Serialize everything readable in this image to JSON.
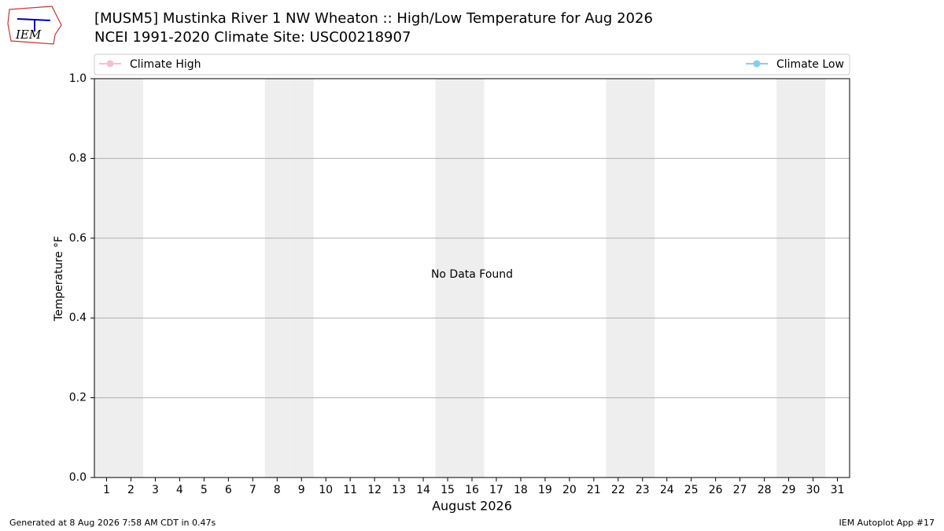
{
  "logo": "IEM",
  "chart_data": {
    "type": "line",
    "title": "[MUSM5] Mustinka River 1 NW Wheaton :: High/Low Temperature for Aug 2026",
    "subtitle": "NCEI 1991-2020 Climate Site: USC00218907",
    "x_label": "August 2026",
    "y_label": "Temperature °F",
    "annotation": "No Data Found",
    "x": [
      1,
      2,
      3,
      4,
      5,
      6,
      7,
      8,
      9,
      10,
      11,
      12,
      13,
      14,
      15,
      16,
      17,
      18,
      19,
      20,
      21,
      22,
      23,
      24,
      25,
      26,
      27,
      28,
      29,
      30,
      31
    ],
    "xlim": [
      0.5,
      31.5
    ],
    "xticks": [
      1,
      2,
      3,
      4,
      5,
      6,
      7,
      8,
      9,
      10,
      11,
      12,
      13,
      14,
      15,
      16,
      17,
      18,
      19,
      20,
      21,
      22,
      23,
      24,
      25,
      26,
      27,
      28,
      29,
      30,
      31
    ],
    "shaded_x": [
      1,
      2,
      8,
      9,
      15,
      16,
      22,
      23,
      29,
      30
    ],
    "ylim": [
      0,
      1
    ],
    "yticks": [
      {
        "value": 0,
        "label": "0.0"
      },
      {
        "value": 0.2,
        "label": "0.2"
      },
      {
        "value": 0.4,
        "label": "0.4"
      },
      {
        "value": 0.6,
        "label": "0.6"
      },
      {
        "value": 0.8,
        "label": "0.8"
      },
      {
        "value": 1,
        "label": "1.0"
      }
    ],
    "grid": true,
    "series": [
      {
        "name": "Climate High",
        "color": "#f4c2cc",
        "values": [
          null,
          null,
          null,
          null,
          null,
          null,
          null,
          null,
          null,
          null,
          null,
          null,
          null,
          null,
          null,
          null,
          null,
          null,
          null,
          null,
          null,
          null,
          null,
          null,
          null,
          null,
          null,
          null,
          null,
          null,
          null
        ]
      },
      {
        "name": "Climate Low",
        "color": "#87ceeb",
        "values": [
          null,
          null,
          null,
          null,
          null,
          null,
          null,
          null,
          null,
          null,
          null,
          null,
          null,
          null,
          null,
          null,
          null,
          null,
          null,
          null,
          null,
          null,
          null,
          null,
          null,
          null,
          null,
          null,
          null,
          null,
          null
        ]
      }
    ],
    "footer_left": "Generated at 8 Aug 2026 7:58 AM CDT in 0.47s",
    "footer_right": "IEM Autoplot App #17"
  }
}
